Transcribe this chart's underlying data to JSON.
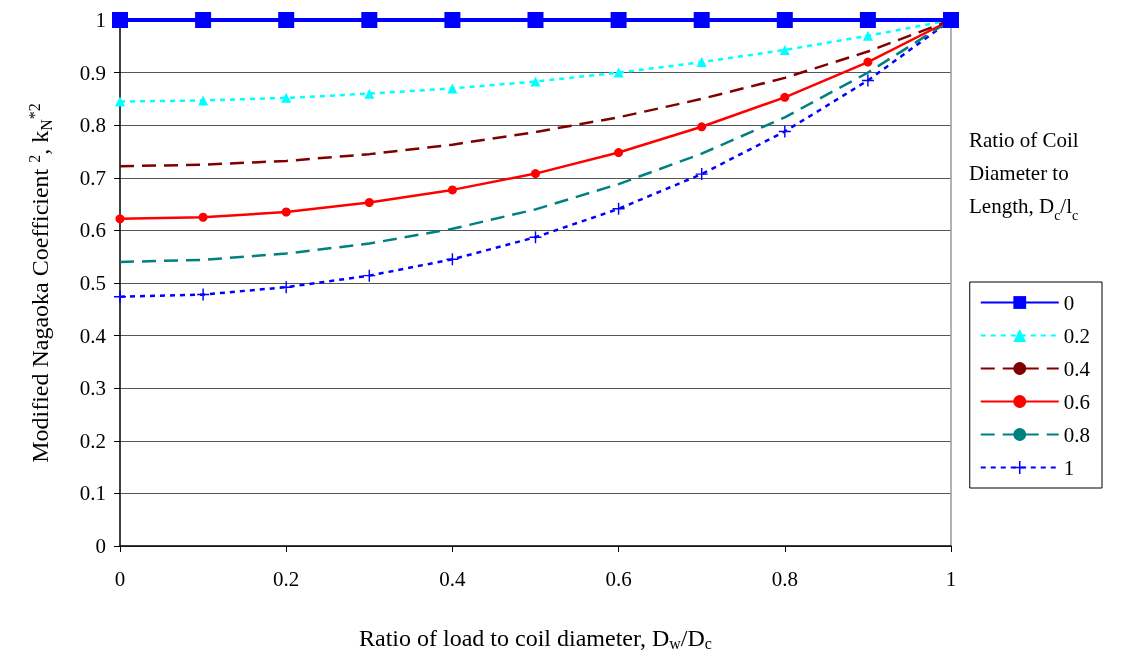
{
  "chart_data": {
    "type": "line",
    "xlabel": "Ratio of load to coil diameter, D$_{w}$/D$_{c}$",
    "ylabel": "Modified Nagaoka Coefficient $^{2}$, k$_{N}$$^{*2}$",
    "legend_title": "Ratio of Coil Diameter to Length, D$_{c}$/l$_{c}$",
    "x": [
      0,
      0.1,
      0.2,
      0.3,
      0.4,
      0.5,
      0.6,
      0.7,
      0.8,
      0.9,
      1
    ],
    "series": [
      {
        "name": "0",
        "color": "#0000ff",
        "marker": "square",
        "line_style": "solid",
        "values": [
          1,
          1,
          1,
          1,
          1,
          1,
          1,
          1,
          1,
          1,
          1
        ]
      },
      {
        "name": "0.2",
        "color": "#00ffff",
        "marker": "triangle",
        "line_style": "dotted",
        "values": [
          0.845,
          0.847,
          0.852,
          0.86,
          0.87,
          0.883,
          0.9,
          0.92,
          0.943,
          0.97,
          1.0
        ]
      },
      {
        "name": "0.4",
        "color": "#800000",
        "marker": "none",
        "line_style": "dashed",
        "values": [
          0.722,
          0.725,
          0.732,
          0.745,
          0.763,
          0.787,
          0.815,
          0.85,
          0.89,
          0.94,
          1.0
        ]
      },
      {
        "name": "0.6",
        "color": "#ff0000",
        "marker": "circle",
        "line_style": "solid",
        "values": [
          0.622,
          0.625,
          0.635,
          0.653,
          0.677,
          0.708,
          0.748,
          0.797,
          0.853,
          0.92,
          1.0
        ]
      },
      {
        "name": "0.8",
        "color": "#008080",
        "marker": "none",
        "line_style": "dashed",
        "values": [
          0.54,
          0.544,
          0.556,
          0.575,
          0.603,
          0.64,
          0.688,
          0.746,
          0.815,
          0.9,
          1.0
        ]
      },
      {
        "name": "1",
        "color": "#0000ff",
        "marker": "cross",
        "line_style": "dotted",
        "values": [
          0.474,
          0.478,
          0.492,
          0.514,
          0.545,
          0.587,
          0.641,
          0.707,
          0.788,
          0.885,
          1.0
        ]
      }
    ],
    "xlim": [
      0,
      1
    ],
    "xticks": [
      0,
      0.2,
      0.4,
      0.6,
      0.8,
      1
    ],
    "ylim": [
      0,
      1
    ],
    "yticks": [
      0,
      0.1,
      0.2,
      0.3,
      0.4,
      0.5,
      0.6,
      0.7,
      0.8,
      0.9,
      1
    ],
    "grid": "y",
    "legend": "right"
  }
}
